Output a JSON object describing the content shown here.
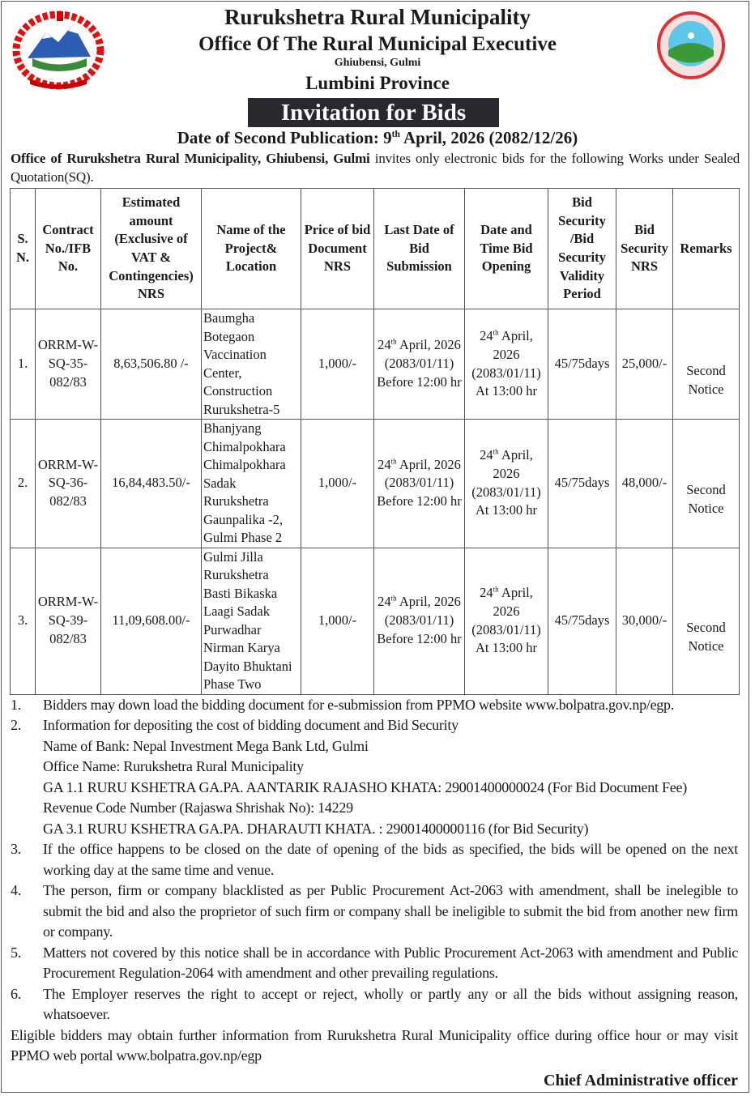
{
  "header": {
    "municipality": "Rurukshetra Rural Municipality",
    "office": "Office Of The Rural Municipal Executive",
    "address": "Ghiubensi, Gulmi",
    "province": "Lumbini Province",
    "title": "Invitation for Bids",
    "publication_prefix": "Date of  Second Publication: 9",
    "publication_sup": "th",
    "publication_suffix": " April, 2026 (2082/12/26)"
  },
  "intro": {
    "bold": "Office of Rurukshetra Rural Municipality, Ghiubensi, Gulmi",
    "text": " invites only electronic bids for the following Works under Sealed Quotation(SQ)."
  },
  "table": {
    "headers": [
      "S. N.",
      "Contract No./IFB No.",
      "Estimated amount (Exclusive of VAT & Contingencies) NRS",
      "Name of the Project& Location",
      "Price of bid Document NRS",
      "Last Date of Bid Submission",
      "Date and Time Bid Opening",
      "Bid Security /Bid Security Validity Period",
      "Bid Security NRS",
      "Remarks"
    ],
    "rows": [
      {
        "sn": "1.",
        "contract": "ORRM-W-SQ-35-082/83",
        "amount": "8,63,506.80 /-",
        "project": "Baumgha Botegaon Vaccination Center, Construction Rurukshetra-5",
        "price": "1,000/-",
        "sub_day": "24",
        "sub_sup": "th",
        "sub_rest": " April, 2026 (2083/01/11) Before 12:00 hr",
        "open_day": "24",
        "open_sup": "th",
        "open_rest": " April, 2026 (2083/01/11) At 13:00 hr",
        "validity": "45/75days",
        "security": "25,000/-",
        "remarks": "Second Notice"
      },
      {
        "sn": "2.",
        "contract": "ORRM-W-SQ-36-082/83",
        "amount": "16,84,483.50/-",
        "project": "Bhanjyang Chimalpokhara Chimalpokhara Sadak Rurukshetra Gaunpalika -2, Gulmi Phase 2",
        "price": "1,000/-",
        "sub_day": "24",
        "sub_sup": "th",
        "sub_rest": " April, 2026 (2083/01/11) Before 12:00 hr",
        "open_day": "24",
        "open_sup": "th",
        "open_rest": " April, 2026 (2083/01/11) At 13:00 hr",
        "validity": "45/75days",
        "security": "48,000/-",
        "remarks": "Second Notice"
      },
      {
        "sn": "3.",
        "contract": "ORRM-W-SQ-39-082/83",
        "amount": "11,09,608.00/-",
        "project": "Gulmi Jilla Rurukshetra Basti Bikaska Laagi Sadak Purwadhar Nirman Karya Dayito Bhuktani Phase Two",
        "price": "1,000/-",
        "sub_day": "24",
        "sub_sup": "th",
        "sub_rest": " April, 2026 (2083/01/11) Before 12:00 hr",
        "open_day": "24",
        "open_sup": "th",
        "open_rest": " April, 2026 (2083/01/11) At 13:00 hr",
        "validity": "45/75days",
        "security": "30,000/-",
        "remarks": "Second Notice"
      }
    ]
  },
  "notes": [
    {
      "n": "1.",
      "lines": [
        "Bidders may down load the bidding document for e-submission from PPMO website www.bolpatra.gov.np/egp."
      ]
    },
    {
      "n": "2.",
      "lines": [
        "Information for depositing the cost of bidding document and Bid Security",
        "Name of Bank: Nepal Investment Mega Bank Ltd, Gulmi",
        "Office Name: Rurukshetra Rural Municipality",
        "GA 1.1 RURU KSHETRA GA.PA. AANTARIK RAJASHO KHATA: 29001400000024 (For Bid Document Fee)",
        "Revenue Code Number (Rajaswa Shrishak No): 14229",
        "GA 3.1 RURU KSHETRA GA.PA. DHARAUTI KHATA. : 29001400000116 (for Bid Security)"
      ]
    },
    {
      "n": "3.",
      "lines": [
        "If the office happens to be closed on the date of opening of the bids as specified, the bids will be opened on the next working day at the same time and venue."
      ]
    },
    {
      "n": "4.",
      "lines": [
        "The person, firm or company blacklisted as per Public Procurement Act-2063 with amendment, shall be inelegible to submit the bid and also the proprietor of such firm or company shall be ineligible to submit the bid from another new firm or company."
      ]
    },
    {
      "n": "5.",
      "lines": [
        "Matters not covered by this notice shall be in accordance with Public Procurement Act-2063 with amendment and Public Procurement Regulation-2064 with amendment and other prevailing regulations."
      ]
    },
    {
      "n": "6.",
      "lines": [
        "The Employer reserves the right to accept or reject, wholly or partly any or all the bids without assigning reason, whatsoever."
      ]
    }
  ],
  "closing": "Eligible bidders may obtain further information from Rurukshetra Rural Municipality office during office hour or may visit PPMO web portal  www.bolpatra.gov.np/egp",
  "signature": "Chief Administrative officer",
  "colors": {
    "title_bg": "#27292f",
    "text": "#1a1a1a"
  },
  "logos": {
    "left": "nepal-emblem",
    "right": "municipality-seal"
  }
}
